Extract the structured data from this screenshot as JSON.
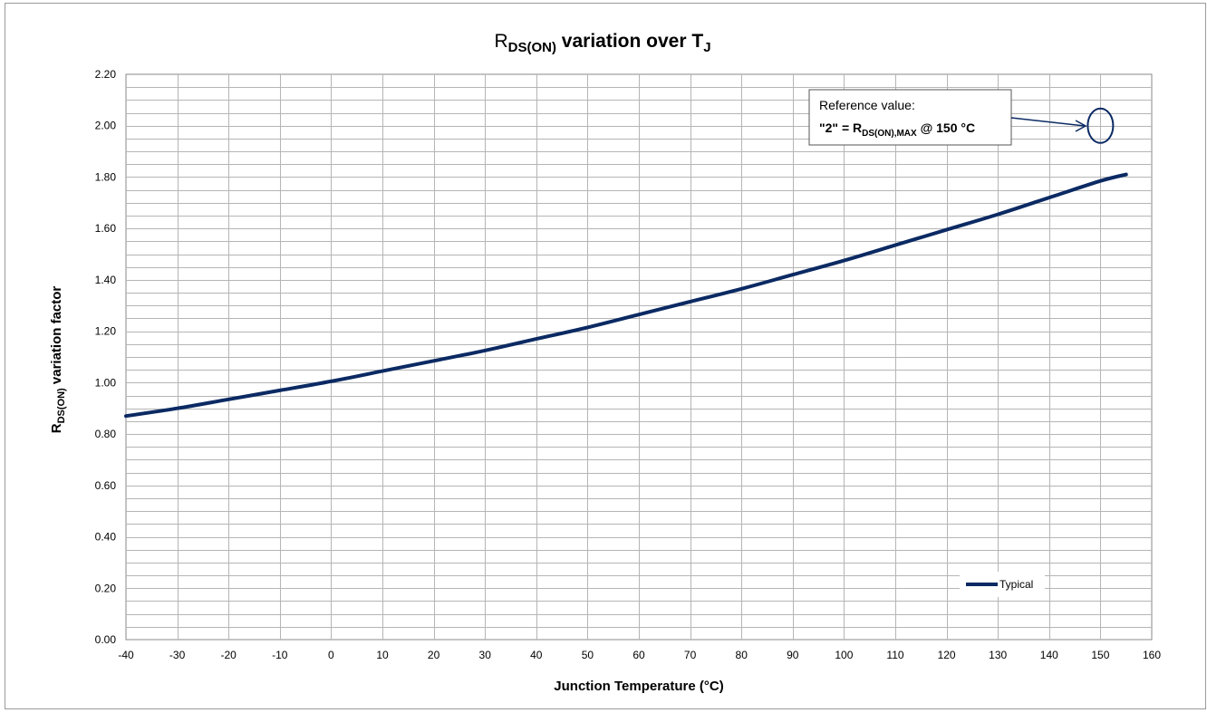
{
  "chart_data": {
    "type": "line",
    "title": {
      "main": "R",
      "sub": "DS(ON)",
      "rest": " variation over T",
      "sub2": "J"
    },
    "ylabel": {
      "main": "R",
      "sub": "DS(ON)",
      "rest": " variation factor"
    },
    "xlabel": "Junction Temperature (°C)",
    "xlim": [
      -40,
      160
    ],
    "ylim": [
      0,
      2.2
    ],
    "x_ticks": [
      "-40",
      "-30",
      "-20",
      "-10",
      "0",
      "10",
      "20",
      "30",
      "40",
      "50",
      "60",
      "70",
      "80",
      "90",
      "100",
      "110",
      "120",
      "130",
      "140",
      "150",
      "160"
    ],
    "y_ticks": [
      "0.00",
      "0.20",
      "0.40",
      "0.60",
      "0.80",
      "1.00",
      "1.20",
      "1.40",
      "1.60",
      "1.80",
      "2.00",
      "2.20"
    ],
    "grid": {
      "x_major_step": 10,
      "y_minor_step": 0.05
    },
    "legend": {
      "position": "bottom-right",
      "entries": [
        "Typical"
      ]
    },
    "series": [
      {
        "name": "Typical",
        "color": "#0b2a63",
        "x": [
          -40,
          -30,
          -20,
          -10,
          0,
          10,
          20,
          30,
          40,
          50,
          60,
          70,
          80,
          90,
          100,
          110,
          120,
          130,
          140,
          150,
          155
        ],
        "y": [
          0.87,
          0.9,
          0.935,
          0.97,
          1.005,
          1.045,
          1.085,
          1.125,
          1.17,
          1.215,
          1.265,
          1.315,
          1.365,
          1.42,
          1.475,
          1.535,
          1.595,
          1.655,
          1.72,
          1.785,
          1.81
        ]
      }
    ],
    "annotation": {
      "line1": "Reference value:",
      "line2_prefix": "\"2\" = R",
      "line2_sub": "DS(ON),MAX",
      "line2_suffix": " @ 150 °C",
      "target_x": 150,
      "target_y": 2.0
    }
  }
}
